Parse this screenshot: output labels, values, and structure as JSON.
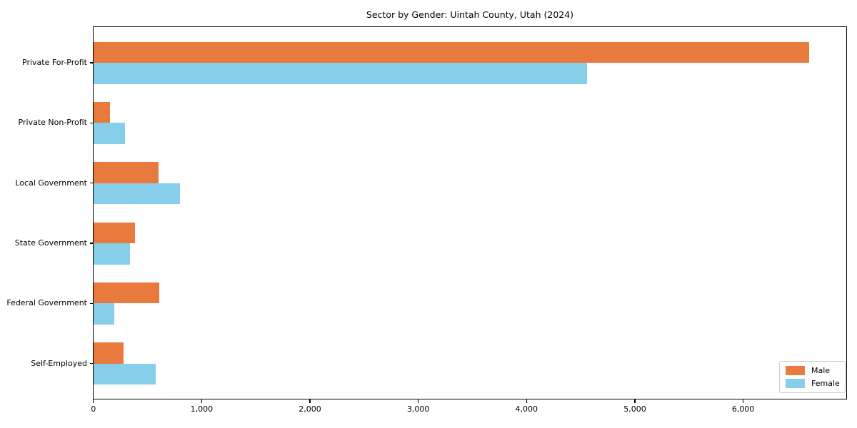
{
  "chart_data": {
    "type": "bar",
    "orientation": "horizontal",
    "title": "Sector by Gender: Uintah County, Utah (2024)",
    "categories": [
      "Private For-Profit",
      "Private Non-Profit",
      "Local Government",
      "State Government",
      "Federal Government",
      "Self-Employed"
    ],
    "series": [
      {
        "name": "Male",
        "color": "#e87a3d",
        "values": [
          6610,
          155,
          605,
          385,
          610,
          280
        ]
      },
      {
        "name": "Female",
        "color": "#87ceeb",
        "values": [
          4560,
          290,
          800,
          340,
          190,
          575
        ]
      }
    ],
    "xlim": [
      0,
      6960
    ],
    "xticks": [
      0,
      1000,
      2000,
      3000,
      4000,
      5000,
      6000
    ],
    "xtick_labels": [
      "0",
      "1,000",
      "2,000",
      "3,000",
      "4,000",
      "5,000",
      "6,000"
    ],
    "xlabel": "",
    "ylabel": "",
    "grid": false,
    "legend": {
      "position": "lower-right",
      "entries": [
        "Male",
        "Female"
      ]
    },
    "background_color": "#ffffff",
    "axis_color": "#000000"
  }
}
